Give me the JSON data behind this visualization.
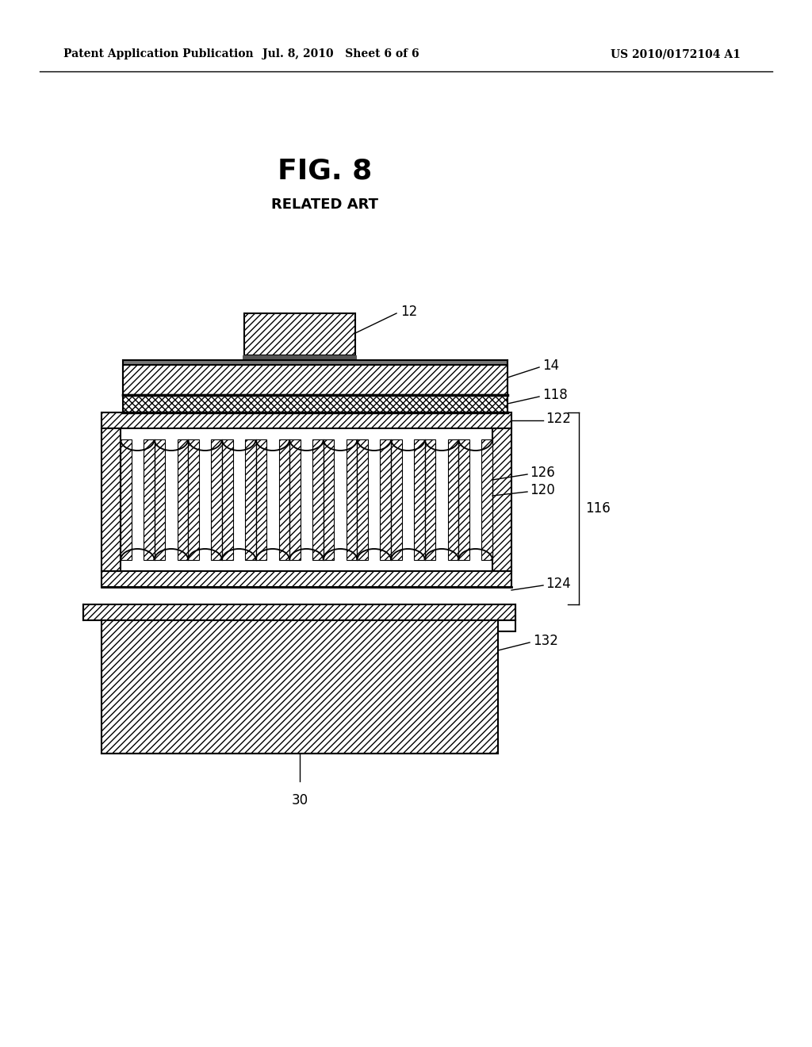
{
  "header_left": "Patent Application Publication",
  "header_mid": "Jul. 8, 2010   Sheet 6 of 6",
  "header_right": "US 2010/0172104 A1",
  "fig_title": "FIG. 8",
  "fig_subtitle": "RELATED ART",
  "bg_color": "#ffffff",
  "lc": "#000000",
  "header_fontsize": 10,
  "fig_title_fontsize": 26,
  "fig_subtitle_fontsize": 13,
  "label_fontsize": 12
}
